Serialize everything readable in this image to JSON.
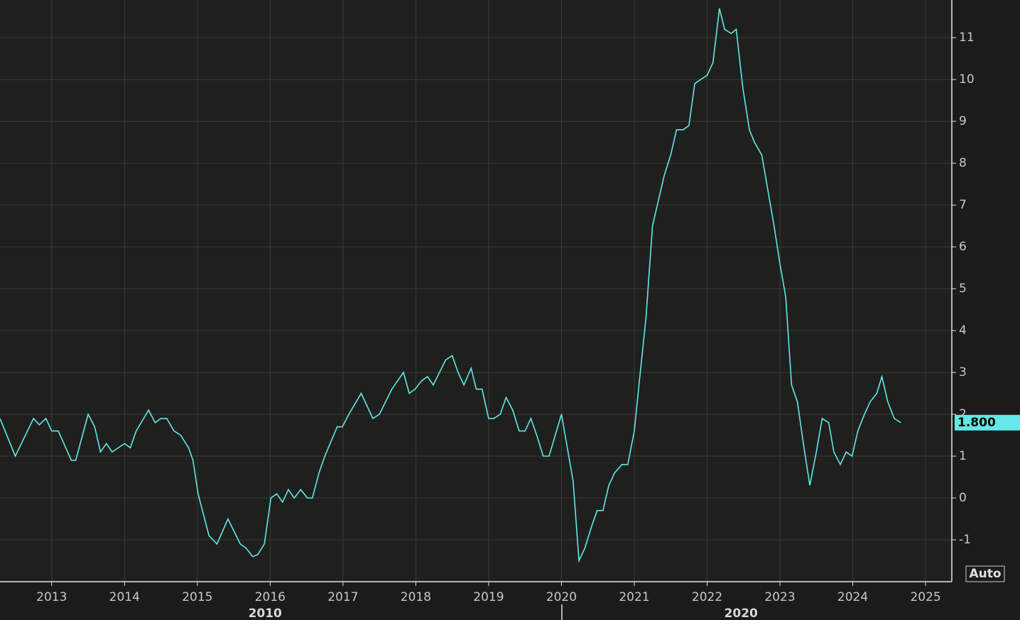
{
  "chart_data": {
    "type": "line",
    "x": [
      2012.29,
      2012.5,
      2012.75,
      2012.83,
      2012.92,
      2013.0,
      2013.09,
      2013.27,
      2013.33,
      2013.5,
      2013.59,
      2013.67,
      2013.75,
      2013.83,
      2014.0,
      2014.08,
      2014.16,
      2014.33,
      2014.42,
      2014.5,
      2014.58,
      2014.68,
      2014.77,
      2014.88,
      2014.94,
      2015.01,
      2015.16,
      2015.27,
      2015.42,
      2015.59,
      2015.67,
      2015.76,
      2015.83,
      2015.92,
      2016.01,
      2016.09,
      2016.17,
      2016.25,
      2016.33,
      2016.42,
      2016.51,
      2016.58,
      2016.67,
      2016.75,
      2016.92,
      2016.99,
      2017.08,
      2017.25,
      2017.33,
      2017.41,
      2017.5,
      2017.67,
      2017.83,
      2017.91,
      2017.99,
      2018.08,
      2018.16,
      2018.24,
      2018.41,
      2018.5,
      2018.58,
      2018.66,
      2018.76,
      2018.83,
      2018.91,
      2019.0,
      2019.07,
      2019.16,
      2019.24,
      2019.33,
      2019.42,
      2019.5,
      2019.58,
      2019.66,
      2019.75,
      2019.83,
      2020.0,
      2020.08,
      2020.16,
      2020.24,
      2020.32,
      2020.41,
      2020.49,
      2020.57,
      2020.65,
      2020.73,
      2020.83,
      2020.91,
      2021.0,
      2021.07,
      2021.16,
      2021.25,
      2021.33,
      2021.41,
      2021.5,
      2021.58,
      2021.67,
      2021.75,
      2021.83,
      2021.91,
      2022.0,
      2022.08,
      2022.17,
      2022.24,
      2022.33,
      2022.4,
      2022.49,
      2022.58,
      2022.65,
      2022.75,
      2022.83,
      2022.92,
      2023.0,
      2023.08,
      2023.16,
      2023.24,
      2023.33,
      2023.41,
      2023.5,
      2023.58,
      2023.67,
      2023.74,
      2023.83,
      2023.91,
      2023.99,
      2024.07,
      2024.16,
      2024.24,
      2024.33,
      2024.4,
      2024.48,
      2024.57,
      2024.66
    ],
    "series": [
      {
        "color": "#62e8e6",
        "values": [
          1.9,
          1.0,
          1.9,
          1.75,
          1.9,
          1.6,
          1.6,
          0.9,
          0.9,
          2.0,
          1.7,
          1.1,
          1.3,
          1.1,
          1.3,
          1.2,
          1.6,
          2.1,
          1.8,
          1.9,
          1.9,
          1.6,
          1.5,
          1.2,
          0.9,
          0.1,
          -0.9,
          -1.1,
          -0.5,
          -1.1,
          -1.2,
          -1.4,
          -1.35,
          -1.1,
          0.0,
          0.1,
          -0.1,
          0.2,
          0.0,
          0.2,
          0.0,
          0.0,
          0.6,
          1.0,
          1.7,
          1.7,
          2.0,
          2.5,
          2.2,
          1.9,
          2.0,
          2.6,
          3.0,
          2.5,
          2.6,
          2.8,
          2.9,
          2.7,
          3.3,
          3.4,
          3.0,
          2.7,
          3.1,
          2.6,
          2.6,
          1.9,
          1.9,
          2.0,
          2.4,
          2.1,
          1.6,
          1.6,
          1.9,
          1.5,
          1.0,
          1.0,
          2.0,
          1.2,
          0.4,
          -1.5,
          -1.2,
          -0.7,
          -0.3,
          -0.3,
          0.3,
          0.6,
          0.8,
          0.8,
          1.6,
          2.8,
          4.3,
          6.5,
          7.1,
          7.7,
          8.2,
          8.8,
          8.8,
          8.9,
          9.9,
          10.0,
          10.1,
          10.4,
          11.7,
          11.2,
          11.1,
          11.2,
          9.8,
          8.8,
          8.5,
          8.2,
          7.4,
          6.5,
          5.6,
          4.8,
          2.7,
          2.3,
          1.2,
          0.3,
          1.1,
          1.9,
          1.8,
          1.1,
          0.8,
          1.1,
          1.0,
          1.6,
          2.0,
          2.3,
          2.5,
          2.9,
          2.3,
          1.9,
          1.8
        ]
      }
    ],
    "xlim": [
      2012.29,
      2025.36
    ],
    "ylim": [
      -2.0,
      11.9
    ],
    "xticks": [
      2013,
      2014,
      2015,
      2016,
      2017,
      2018,
      2019,
      2020,
      2021,
      2022,
      2023,
      2024,
      2025
    ],
    "yticks": [
      -1,
      0,
      1,
      2,
      3,
      4,
      5,
      6,
      7,
      8,
      9,
      10,
      11
    ],
    "decades": [
      2010,
      2020
    ],
    "last_label": {
      "value": 1.8,
      "label": "1.800"
    },
    "scale_button": "Auto",
    "grid": true
  }
}
